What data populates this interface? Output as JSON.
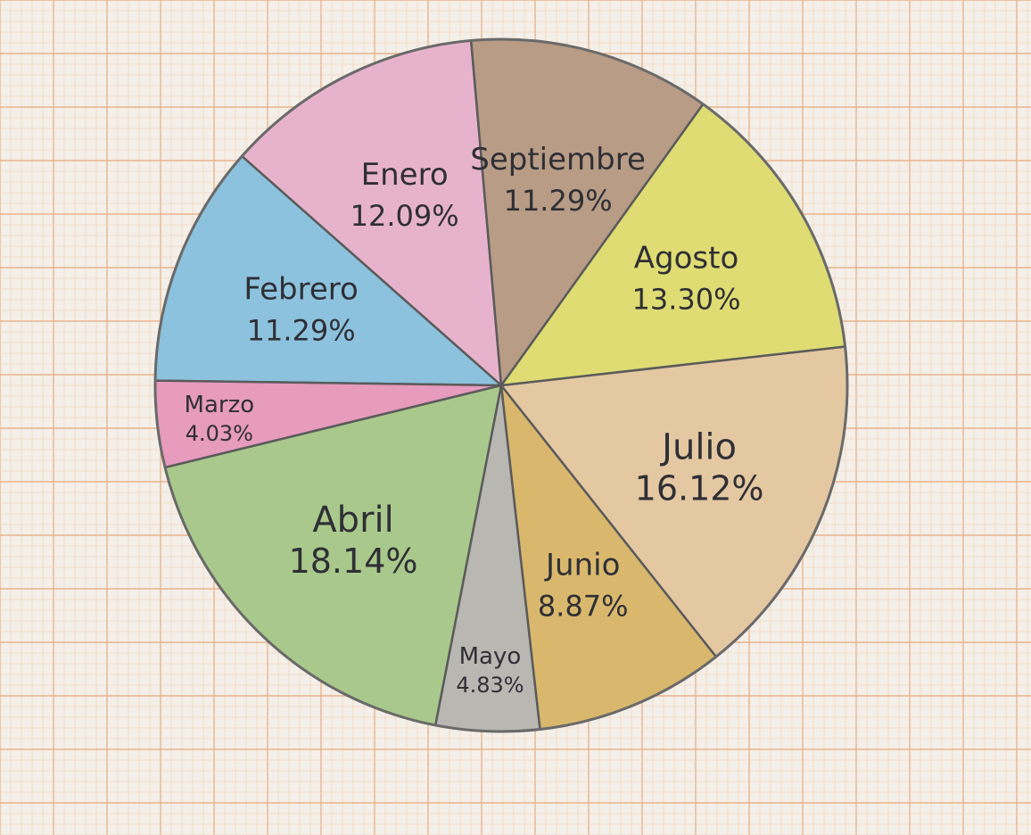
{
  "paper": {
    "background": "#f4efe8",
    "minor_grid_color": "#f0cfb4",
    "major_grid_color": "#e8b48e"
  },
  "chart_data": {
    "type": "pie",
    "title": "",
    "unit": "%",
    "slices": [
      {
        "label": "Enero",
        "value": 12.09,
        "value_text": "12.09%",
        "color": "#e7b3cc"
      },
      {
        "label": "Febrero",
        "value": 11.29,
        "value_text": "11.29%",
        "color": "#8cc2de"
      },
      {
        "label": "Marzo",
        "value": 4.03,
        "value_text": "4.03%",
        "color": "#e79bbd"
      },
      {
        "label": "Abril",
        "value": 18.14,
        "value_text": "18.14%",
        "color": "#a9c98c"
      },
      {
        "label": "Mayo",
        "value": 4.83,
        "value_text": "4.83%",
        "color": "#b9b7b2"
      },
      {
        "label": "Junio",
        "value": 8.87,
        "value_text": "8.87%",
        "color": "#d9b86e"
      },
      {
        "label": "Julio",
        "value": 16.12,
        "value_text": "16.12%",
        "color": "#e4c8a2"
      },
      {
        "label": "Agosto",
        "value": 13.3,
        "value_text": "13.30%",
        "color": "#dedc73"
      },
      {
        "label": "Septiembre",
        "value": 11.29,
        "value_text": "11.29%",
        "color": "#b89c86"
      }
    ]
  }
}
